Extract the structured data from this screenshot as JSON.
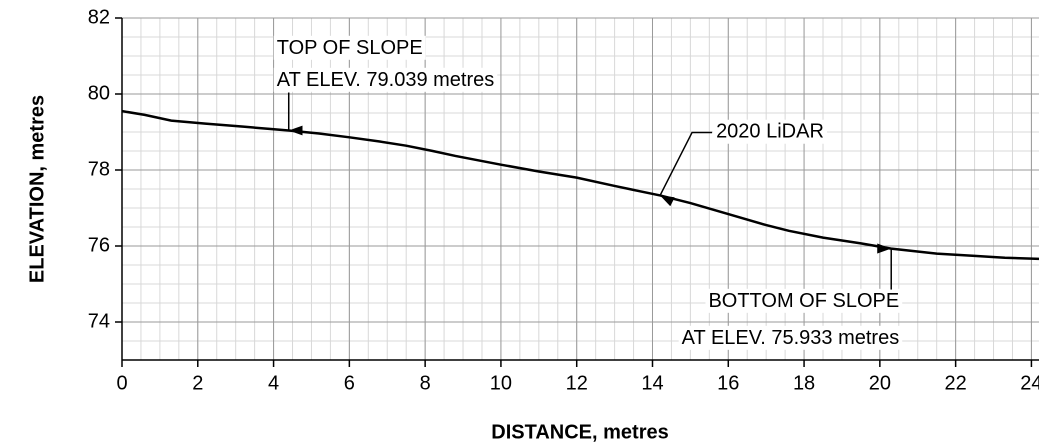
{
  "chart_data": {
    "type": "line",
    "xlabel": "DISTANCE, metres",
    "ylabel": "ELEVATION, metres",
    "x": [
      0,
      0.6,
      1.3,
      2.2,
      3.2,
      4.4,
      5.2,
      6.0,
      6.8,
      7.5,
      8.2,
      8.8,
      10.0,
      11.0,
      12.0,
      13.0,
      14.2,
      15.0,
      16.0,
      17.0,
      17.6,
      18.5,
      19.5,
      20.3,
      21.5,
      22.5,
      23.3,
      24.2
    ],
    "series": [
      {
        "name": "2020 LiDAR",
        "color": "#000000",
        "values": [
          79.55,
          79.45,
          79.3,
          79.22,
          79.14,
          79.04,
          78.96,
          78.86,
          78.75,
          78.64,
          78.5,
          78.37,
          78.14,
          77.96,
          77.8,
          77.58,
          77.33,
          77.13,
          76.84,
          76.55,
          76.4,
          76.22,
          76.07,
          75.93,
          75.8,
          75.74,
          75.69,
          75.66
        ]
      }
    ],
    "xlim": [
      0,
      24.2
    ],
    "ylim": [
      73,
      82
    ],
    "xticks": [
      0,
      2,
      4,
      6,
      8,
      10,
      12,
      14,
      16,
      18,
      20,
      22,
      24
    ],
    "yticks": [
      74,
      76,
      78,
      80,
      82
    ],
    "grid": true,
    "minor_grid": 0.5,
    "annotations": [
      {
        "lines": [
          "TOP OF SLOPE",
          "AT ELEV. 79.039 metres"
        ],
        "x": 4.4,
        "y": 79.039
      },
      {
        "lines": [
          "2020 LiDAR"
        ],
        "x": 14.2,
        "y": 77.33
      },
      {
        "lines": [
          "BOTTOM OF SLOPE",
          "AT ELEV. 75.933 metres"
        ],
        "x": 20.3,
        "y": 75.933
      }
    ]
  }
}
